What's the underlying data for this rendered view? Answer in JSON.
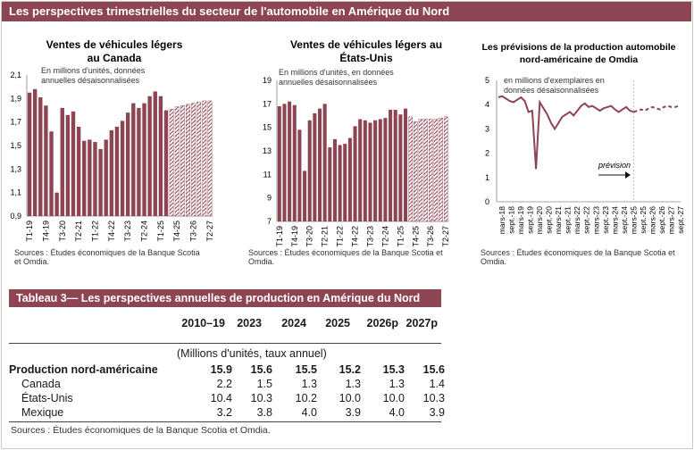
{
  "banner": "Les perspectives trimestrielles du secteur de l'automobile en Amérique du Nord",
  "chart_data": [
    {
      "type": "bar",
      "title": "Ventes de véhicules légers au Canada",
      "subtitle": "En millions d'unités, données annuelles désaisonnalisées",
      "ylim": [
        0.9,
        2.1
      ],
      "yticks": [
        "2,1",
        "1,9",
        "1,7",
        "1,5",
        "1,3",
        "1,1",
        "0,9"
      ],
      "yticks_values": [
        2.1,
        1.9,
        1.7,
        1.5,
        1.3,
        1.1,
        0.9
      ],
      "xticks": [
        "T1-19",
        "T4-19",
        "T3-20",
        "T2-21",
        "T1-22",
        "T4-22",
        "T3-23",
        "T2-24",
        "T1-25",
        "T4-25",
        "T3-26",
        "T2-27"
      ],
      "values": [
        1.95,
        1.98,
        1.91,
        1.84,
        1.62,
        1.1,
        1.82,
        1.76,
        1.79,
        1.66,
        1.54,
        1.55,
        1.53,
        1.47,
        1.55,
        1.63,
        1.66,
        1.71,
        1.78,
        1.86,
        1.82,
        1.86,
        1.92,
        1.96,
        1.92,
        1.8,
        1.81,
        1.83,
        1.84,
        1.85,
        1.86,
        1.87,
        1.88,
        1.88
      ],
      "forecast_start_index": 26,
      "source": "Sources : Études économiques de la Banque Scotia et Omdia."
    },
    {
      "type": "bar",
      "title": "Ventes de véhicules légers aux États-Unis",
      "subtitle": "En millions d'unités, en données annuelles désaisonnalisées",
      "ylim": [
        7,
        19
      ],
      "yticks": [
        "19",
        "17",
        "15",
        "13",
        "11",
        "9",
        "7"
      ],
      "yticks_values": [
        19,
        17,
        15,
        13,
        11,
        9,
        7
      ],
      "xticks": [
        "T1-19",
        "T4-19",
        "T3-20",
        "T2-21",
        "T1-22",
        "T4-22",
        "T3-23",
        "T2-24",
        "T1-25",
        "T4-25",
        "T3-26",
        "T2-27"
      ],
      "values": [
        16.8,
        17.0,
        17.2,
        16.9,
        14.8,
        11.3,
        15.6,
        16.2,
        16.6,
        17.0,
        13.3,
        14.0,
        13.5,
        13.6,
        14.1,
        15.1,
        15.7,
        15.6,
        15.4,
        15.6,
        15.7,
        15.8,
        16.5,
        16.5,
        16.1,
        16.6,
        15.9,
        15.5,
        15.7,
        15.7,
        15.7,
        15.7,
        15.8,
        15.9
      ],
      "forecast_start_index": 26,
      "source": "Sources : Études économiques de la Banque Scotia et Omdia."
    },
    {
      "type": "line",
      "title": "Les prévisions de la production automobile nord-américaine de Omdia",
      "subtitle": "en millions d'exemplaires en données désaisonnalisées",
      "ylim": [
        0,
        5
      ],
      "yticks": [
        "5",
        "4",
        "3",
        "2",
        "1",
        "0"
      ],
      "yticks_values": [
        5,
        4,
        3,
        2,
        1,
        0
      ],
      "xticks": [
        "mars-18",
        "sept.-18",
        "mars-19",
        "sept.-19",
        "mars-20",
        "sept.-20",
        "mars-21",
        "sept.-21",
        "mars-22",
        "sept.-22",
        "mars-23",
        "sept.-23",
        "mars-24",
        "sept.-24",
        "mars-25",
        "sept.-25",
        "mars-26",
        "sept.-26",
        "mars-27",
        "sept.-27"
      ],
      "values": [
        4.3,
        4.35,
        4.25,
        4.15,
        4.1,
        4.2,
        4.3,
        4.15,
        3.7,
        3.75,
        1.35,
        4.1,
        3.85,
        3.6,
        3.25,
        3.0,
        3.25,
        3.5,
        3.6,
        3.7,
        3.55,
        3.75,
        3.95,
        4.05,
        3.9,
        3.95,
        3.85,
        3.75,
        3.85,
        3.9,
        3.95,
        3.8,
        3.7,
        3.8,
        3.9,
        3.75,
        3.7,
        3.75,
        3.8,
        3.75,
        3.85,
        3.9,
        3.85,
        3.8,
        3.9,
        3.95,
        3.9,
        3.9,
        3.95
      ],
      "forecast_start_index": 36,
      "annotation": "prévision",
      "source": "Sources : Études économiques de la Banque Scotia et Omdia."
    }
  ],
  "table": {
    "title": "Tableau 3— Les perspectives annuelles de production en Amérique du Nord",
    "headers": [
      "2010–19",
      "2023",
      "2024",
      "2025",
      "2026p",
      "2027p"
    ],
    "unit_note": "(Millions d'unités, taux annuel)",
    "rows": [
      {
        "label": "Production nord-américaine",
        "values": [
          "15.9",
          "15.6",
          "15.5",
          "15.2",
          "15.3",
          "15.6"
        ],
        "bold": true
      },
      {
        "label": "Canada",
        "values": [
          "2.2",
          "1.5",
          "1.3",
          "1.3",
          "1.3",
          "1.4"
        ]
      },
      {
        "label": "États-Unis",
        "values": [
          "10.4",
          "10.3",
          "10.2",
          "10.0",
          "10.0",
          "10.3"
        ]
      },
      {
        "label": "Mexique",
        "values": [
          "3.2",
          "3.8",
          "4.0",
          "3.9",
          "4.0",
          "3.9"
        ]
      }
    ],
    "source": "Sources : Études économiques de la Banque Scotia et Omdia."
  },
  "colors": {
    "accent": "#8e4553",
    "bar": "#8e4553"
  }
}
